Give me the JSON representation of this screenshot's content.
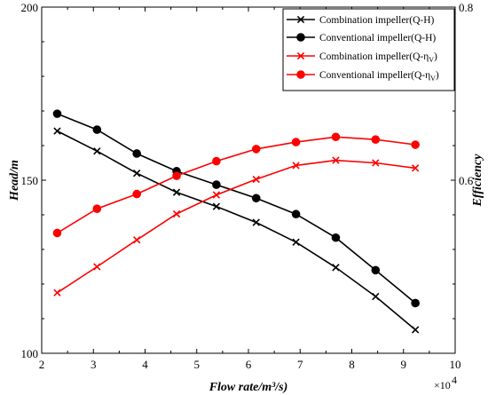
{
  "chart_data": {
    "type": "line",
    "xlabel": "Flow rate/m³/s)",
    "x_multiplier": "×10",
    "x_multiplier_exp": "4",
    "y_left_label": "Head/m",
    "y_right_label": "Efficiency",
    "xlim": [
      2,
      10
    ],
    "ylim_left": [
      100,
      200
    ],
    "ylim_right": [
      0.4,
      0.8
    ],
    "x_ticks": [
      2,
      3,
      4,
      5,
      6,
      7,
      8,
      9,
      10
    ],
    "y_left_ticks": [
      100,
      150,
      200
    ],
    "y_right_ticks": [
      0.6,
      0.8
    ],
    "x": [
      2.3,
      3.07,
      3.84,
      4.61,
      5.38,
      6.15,
      6.92,
      7.69,
      8.46,
      9.23
    ],
    "series": [
      {
        "name": "Combination impeller(Q-H)",
        "axis": "left",
        "color": "#000000",
        "marker": "x",
        "values": [
          164.2,
          158.4,
          152.0,
          146.5,
          142.4,
          137.8,
          132.1,
          124.8,
          116.4,
          106.8
        ]
      },
      {
        "name": "Conventional impeller(Q-H)",
        "axis": "left",
        "color": "#000000",
        "marker": "circle",
        "values": [
          169.2,
          164.6,
          157.7,
          152.6,
          148.7,
          144.8,
          140.2,
          133.4,
          124.0,
          114.5
        ]
      },
      {
        "name": "Combination impeller(Q-η",
        "name_sub": "V",
        "name_end": ")",
        "axis": "right",
        "color": "#ff0000",
        "marker": "x",
        "values": [
          0.47,
          0.5,
          0.531,
          0.561,
          0.583,
          0.601,
          0.617,
          0.623,
          0.62,
          0.614
        ]
      },
      {
        "name": "Conventional impeller(Q-η",
        "name_sub": "V",
        "name_end": ")",
        "axis": "right",
        "color": "#ff0000",
        "marker": "circle",
        "values": [
          0.539,
          0.567,
          0.584,
          0.605,
          0.622,
          0.636,
          0.644,
          0.65,
          0.647,
          0.641
        ]
      }
    ],
    "legend_position": "top-right",
    "grid": false
  }
}
